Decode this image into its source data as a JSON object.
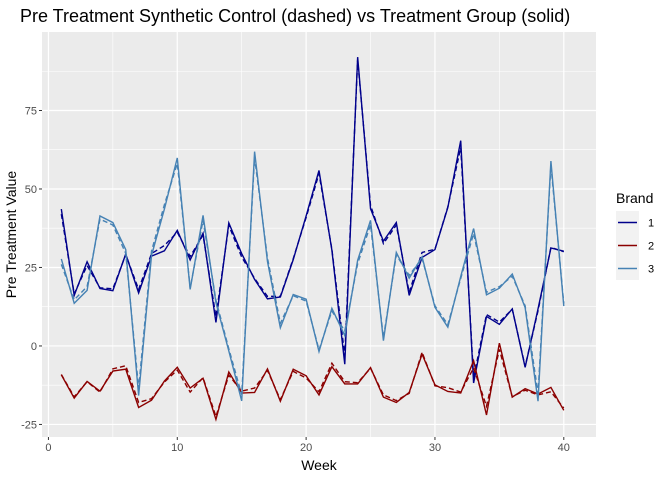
{
  "chart_data": {
    "type": "line",
    "title": "Pre Treatment Synthetic Control (dashed) vs Treatment Group (solid)",
    "xlabel": "Week",
    "ylabel": "Pre Treatment Value",
    "xlim": [
      -0.5,
      42.5
    ],
    "ylim": [
      -29,
      100
    ],
    "x_ticks": [
      0,
      10,
      20,
      30,
      40
    ],
    "y_ticks": [
      -25,
      0,
      25,
      50,
      75
    ],
    "grid": true,
    "legend": {
      "title": "Brand",
      "placement": "right"
    },
    "x": [
      1,
      2,
      3,
      4,
      5,
      6,
      7,
      8,
      9,
      10,
      11,
      12,
      13,
      14,
      15,
      16,
      17,
      18,
      19,
      20,
      21,
      22,
      23,
      24,
      25,
      26,
      27,
      28,
      29,
      30,
      31,
      32,
      33,
      34,
      35,
      36,
      37,
      38,
      39,
      40
    ],
    "series": [
      {
        "name": "1",
        "color": "#00008B",
        "treatment": [
          43.6,
          16.1,
          26.8,
          18.3,
          17.6,
          29.3,
          16.9,
          28.6,
          30.3,
          36.8,
          27.4,
          35.9,
          7.5,
          39.2,
          29.4,
          21.2,
          15.0,
          15.6,
          27.5,
          41.4,
          55.9,
          30.5,
          -5.8,
          92.0,
          43.7,
          33.4,
          39.3,
          16.1,
          28.2,
          30.7,
          44.1,
          65.4,
          -11.8,
          9.4,
          6.9,
          11.8,
          -6.8,
          11.8,
          31.2,
          30.2
        ],
        "synthetic": [
          42.0,
          16.6,
          25.6,
          18.5,
          18.2,
          29.1,
          18.0,
          29.4,
          32.0,
          36.2,
          28.5,
          35.3,
          9.3,
          38.4,
          28.3,
          21.5,
          15.8,
          15.8,
          27.8,
          40.9,
          54.9,
          30.8,
          -3.1,
          91.2,
          44.8,
          32.6,
          38.5,
          17.1,
          29.8,
          30.8,
          44.3,
          63.2,
          -10.2,
          10.0,
          7.6,
          11.7,
          -6.5,
          11.2,
          31.4,
          30.0
        ]
      },
      {
        "name": "2",
        "color": "#8B0000",
        "treatment": [
          -9.2,
          -16.6,
          -11.3,
          -14.4,
          -8.0,
          -7.4,
          -19.6,
          -17.3,
          -11.2,
          -6.8,
          -13.4,
          -10.3,
          -23.4,
          -8.3,
          -15.0,
          -14.8,
          -7.3,
          -17.6,
          -7.4,
          -9.5,
          -15.6,
          -6.6,
          -12.1,
          -12.1,
          -6.9,
          -16.3,
          -18.0,
          -14.8,
          -2.6,
          -12.4,
          -14.5,
          -15.0,
          -4.7,
          -22.0,
          0.9,
          -16.3,
          -13.6,
          -15.3,
          -13.2,
          -20.5
        ],
        "synthetic": [
          -9.1,
          -16.2,
          -11.4,
          -14.7,
          -7.3,
          -6.3,
          -18.0,
          -16.8,
          -11.5,
          -7.7,
          -14.7,
          -10.1,
          -22.5,
          -9.3,
          -14.4,
          -13.4,
          -7.8,
          -17.1,
          -8.1,
          -10.2,
          -14.6,
          -5.5,
          -11.4,
          -11.7,
          -7.1,
          -15.6,
          -17.4,
          -15.1,
          -2.0,
          -12.7,
          -13.3,
          -14.7,
          -7.0,
          -19.2,
          -1.1,
          -16.2,
          -14.1,
          -15.6,
          -14.6,
          -19.8
        ]
      },
      {
        "name": "3",
        "color": "#4682B4",
        "treatment": [
          27.7,
          13.6,
          17.7,
          41.4,
          39.3,
          30.7,
          -15.8,
          28.8,
          43.6,
          59.9,
          18.0,
          41.6,
          13.8,
          -1.6,
          -17.5,
          61.9,
          26.9,
          5.8,
          16.4,
          14.9,
          -1.8,
          12.0,
          3.3,
          27.3,
          40.0,
          1.7,
          29.8,
          21.6,
          28.4,
          12.3,
          6.0,
          22.1,
          37.4,
          16.3,
          18.4,
          22.9,
          12.2,
          -17.6,
          58.9,
          12.7
        ],
        "synthetic": [
          26.0,
          14.7,
          18.9,
          40.4,
          38.5,
          29.5,
          -13.5,
          30.2,
          45.0,
          58.1,
          18.5,
          40.0,
          14.6,
          -0.9,
          -15.5,
          60.1,
          28.0,
          7.2,
          16.0,
          14.3,
          -1.2,
          11.1,
          4.8,
          26.2,
          38.6,
          2.6,
          29.0,
          22.5,
          27.9,
          12.8,
          6.8,
          21.5,
          35.8,
          17.1,
          18.9,
          22.2,
          12.8,
          -15.1,
          57.6,
          13.5
        ]
      }
    ]
  }
}
